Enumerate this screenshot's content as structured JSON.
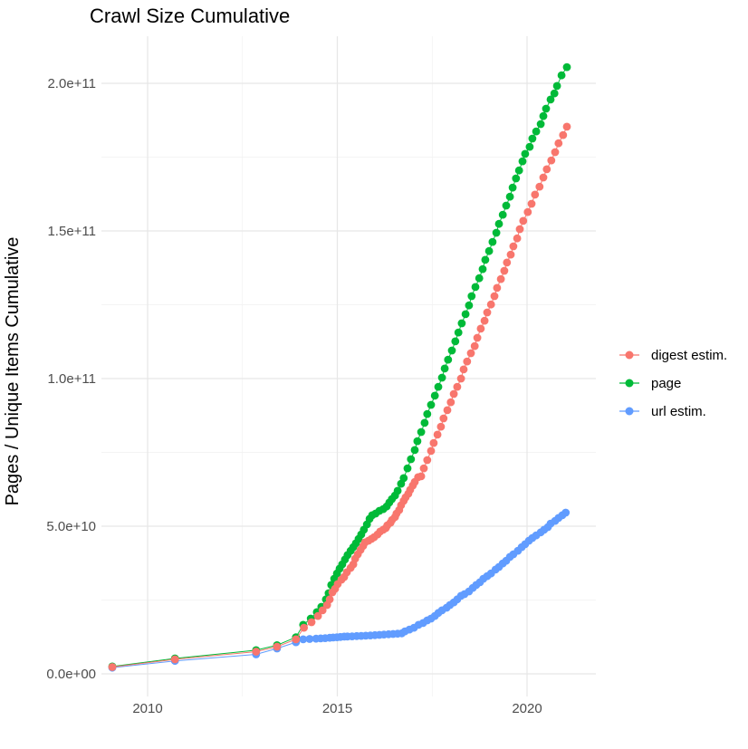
{
  "title": "Crawl Size Cumulative",
  "axes": {
    "y": {
      "title": "Pages / Unique Items Cumulative",
      "unit": "items (values stored in billions, 1e9)",
      "ticks": [
        {
          "value": 0,
          "label": "0.0e+00"
        },
        {
          "value": 50,
          "label": "5.0e+10"
        },
        {
          "value": 100,
          "label": "1.0e+11"
        },
        {
          "value": 150,
          "label": "1.5e+11"
        },
        {
          "value": 200,
          "label": "2.0e+11"
        }
      ],
      "minor_ticks": [
        25,
        75,
        125,
        175
      ]
    },
    "x": {
      "title": "",
      "unit": "year",
      "ticks": [
        {
          "value": 2010,
          "label": "2010"
        },
        {
          "value": 2015,
          "label": "2015"
        },
        {
          "value": 2020,
          "label": "2020"
        }
      ],
      "minor_ticks": [
        2012.5,
        2017.5
      ]
    }
  },
  "legend": {
    "position": "right",
    "items": [
      {
        "label": "digest estim.",
        "color": "#F8766D"
      },
      {
        "label": "page",
        "color": "#00BA38"
      },
      {
        "label": "url estim.",
        "color": "#619CFF"
      }
    ]
  },
  "colors": {
    "background": "#FFFFFF",
    "grid_major": "#E7E7E7",
    "grid_minor": "#F1F1F1",
    "axis_text": "#4D4D4D",
    "title_text": "#000000"
  },
  "chart_data": {
    "type": "scatter",
    "style": "points connected by thin lines",
    "title": "Crawl Size Cumulative",
    "xlabel": "",
    "ylabel": "Pages / Unique Items Cumulative",
    "xlim": [
      2008.8,
      2021.8
    ],
    "ylim_billions": [
      -7,
      216
    ],
    "grid": true,
    "legend_position": "right",
    "y_value_unit": "1e9",
    "series": [
      {
        "name": "digest estim.",
        "color": "#F8766D",
        "points": [
          [
            2009.07,
            2.3
          ],
          [
            2010.72,
            4.9
          ],
          [
            2012.86,
            7.5
          ],
          [
            2013.41,
            9.2
          ],
          [
            2013.91,
            11.7
          ],
          [
            2014.12,
            15.6
          ],
          [
            2014.32,
            17.5
          ],
          [
            2014.49,
            19.6
          ],
          [
            2014.61,
            21.5
          ],
          [
            2014.73,
            23.3
          ],
          [
            2014.8,
            25.2
          ],
          [
            2014.87,
            27.6
          ],
          [
            2014.94,
            28.8
          ],
          [
            2015.01,
            30.4
          ],
          [
            2015.11,
            31.9
          ],
          [
            2015.18,
            32.8
          ],
          [
            2015.25,
            34.4
          ],
          [
            2015.35,
            35.9
          ],
          [
            2015.42,
            37.1
          ],
          [
            2015.47,
            39.0
          ],
          [
            2015.54,
            40.5
          ],
          [
            2015.61,
            42.0
          ],
          [
            2015.68,
            43.3
          ],
          [
            2015.73,
            44.5
          ],
          [
            2015.82,
            45.1
          ],
          [
            2015.9,
            45.7
          ],
          [
            2015.97,
            46.3
          ],
          [
            2016.06,
            47.2
          ],
          [
            2016.13,
            48.2
          ],
          [
            2016.21,
            48.8
          ],
          [
            2016.28,
            49.4
          ],
          [
            2016.32,
            50.3
          ],
          [
            2016.4,
            51.2
          ],
          [
            2016.44,
            52.1
          ],
          [
            2016.52,
            53.1
          ],
          [
            2016.56,
            54.3
          ],
          [
            2016.63,
            55.5
          ],
          [
            2016.68,
            57.1
          ],
          [
            2016.75,
            58.6
          ],
          [
            2016.8,
            59.8
          ],
          [
            2016.87,
            61.0
          ],
          [
            2016.92,
            62.3
          ],
          [
            2016.99,
            63.8
          ],
          [
            2017.04,
            65.0
          ],
          [
            2017.13,
            66.6
          ],
          [
            2017.21,
            66.9
          ],
          [
            2017.28,
            69.6
          ],
          [
            2017.37,
            72.4
          ],
          [
            2017.47,
            75.5
          ],
          [
            2017.54,
            78.2
          ],
          [
            2017.64,
            81.0
          ],
          [
            2017.73,
            83.7
          ],
          [
            2017.8,
            86.5
          ],
          [
            2017.9,
            89.3
          ],
          [
            2017.99,
            92.0
          ],
          [
            2018.07,
            94.8
          ],
          [
            2018.16,
            97.2
          ],
          [
            2018.26,
            100.0
          ],
          [
            2018.33,
            103.1
          ],
          [
            2018.42,
            105.8
          ],
          [
            2018.52,
            108.6
          ],
          [
            2018.62,
            111.0
          ],
          [
            2018.69,
            113.8
          ],
          [
            2018.78,
            116.9
          ],
          [
            2018.88,
            119.6
          ],
          [
            2018.95,
            122.4
          ],
          [
            2019.05,
            125.1
          ],
          [
            2019.14,
            127.9
          ],
          [
            2019.21,
            130.7
          ],
          [
            2019.31,
            133.7
          ],
          [
            2019.4,
            136.5
          ],
          [
            2019.47,
            139.3
          ],
          [
            2019.57,
            142.0
          ],
          [
            2019.64,
            144.8
          ],
          [
            2019.74,
            147.5
          ],
          [
            2019.81,
            150.6
          ],
          [
            2019.9,
            153.4
          ],
          [
            2020.02,
            156.4
          ],
          [
            2020.12,
            159.2
          ],
          [
            2020.21,
            162.3
          ],
          [
            2020.33,
            165.0
          ],
          [
            2020.43,
            168.1
          ],
          [
            2020.52,
            170.9
          ],
          [
            2020.64,
            173.9
          ],
          [
            2020.74,
            176.7
          ],
          [
            2020.83,
            179.7
          ],
          [
            2020.95,
            182.5
          ],
          [
            2021.05,
            185.3
          ]
        ]
      },
      {
        "name": "page",
        "color": "#00BA38",
        "points": [
          [
            2009.07,
            2.5
          ],
          [
            2010.72,
            5.2
          ],
          [
            2012.86,
            8.0
          ],
          [
            2013.41,
            9.7
          ],
          [
            2013.91,
            12.4
          ],
          [
            2014.1,
            16.6
          ],
          [
            2014.3,
            18.7
          ],
          [
            2014.46,
            20.9
          ],
          [
            2014.58,
            22.7
          ],
          [
            2014.7,
            25.2
          ],
          [
            2014.77,
            27.3
          ],
          [
            2014.84,
            30.1
          ],
          [
            2014.92,
            32.2
          ],
          [
            2014.99,
            34.0
          ],
          [
            2015.06,
            35.6
          ],
          [
            2015.13,
            37.1
          ],
          [
            2015.2,
            38.7
          ],
          [
            2015.27,
            40.2
          ],
          [
            2015.35,
            41.7
          ],
          [
            2015.42,
            42.9
          ],
          [
            2015.49,
            44.2
          ],
          [
            2015.56,
            45.7
          ],
          [
            2015.63,
            47.2
          ],
          [
            2015.7,
            48.8
          ],
          [
            2015.78,
            50.6
          ],
          [
            2015.85,
            52.5
          ],
          [
            2015.92,
            53.7
          ],
          [
            2016.01,
            54.3
          ],
          [
            2016.11,
            55.2
          ],
          [
            2016.21,
            55.8
          ],
          [
            2016.3,
            56.7
          ],
          [
            2016.37,
            58.0
          ],
          [
            2016.44,
            59.2
          ],
          [
            2016.52,
            60.4
          ],
          [
            2016.59,
            62.0
          ],
          [
            2016.68,
            64.4
          ],
          [
            2016.75,
            66.3
          ],
          [
            2016.85,
            69.6
          ],
          [
            2016.94,
            72.7
          ],
          [
            2017.04,
            75.8
          ],
          [
            2017.11,
            78.8
          ],
          [
            2017.21,
            81.9
          ],
          [
            2017.3,
            85.0
          ],
          [
            2017.37,
            88.0
          ],
          [
            2017.47,
            91.1
          ],
          [
            2017.57,
            94.2
          ],
          [
            2017.66,
            97.2
          ],
          [
            2017.76,
            100.3
          ],
          [
            2017.83,
            103.4
          ],
          [
            2017.92,
            106.4
          ],
          [
            2018.02,
            109.5
          ],
          [
            2018.11,
            112.6
          ],
          [
            2018.19,
            115.6
          ],
          [
            2018.28,
            118.7
          ],
          [
            2018.38,
            121.8
          ],
          [
            2018.47,
            124.8
          ],
          [
            2018.54,
            127.9
          ],
          [
            2018.64,
            131.0
          ],
          [
            2018.74,
            134.0
          ],
          [
            2018.83,
            137.1
          ],
          [
            2018.9,
            140.2
          ],
          [
            2019.0,
            143.2
          ],
          [
            2019.09,
            146.3
          ],
          [
            2019.19,
            149.4
          ],
          [
            2019.26,
            152.4
          ],
          [
            2019.36,
            155.5
          ],
          [
            2019.45,
            158.6
          ],
          [
            2019.55,
            161.6
          ],
          [
            2019.62,
            164.7
          ],
          [
            2019.71,
            167.8
          ],
          [
            2019.79,
            170.5
          ],
          [
            2019.88,
            173.6
          ],
          [
            2019.95,
            176.1
          ],
          [
            2020.07,
            178.5
          ],
          [
            2020.14,
            181.3
          ],
          [
            2020.24,
            183.7
          ],
          [
            2020.36,
            186.2
          ],
          [
            2020.43,
            188.9
          ],
          [
            2020.5,
            191.4
          ],
          [
            2020.62,
            194.5
          ],
          [
            2020.72,
            196.6
          ],
          [
            2020.79,
            199.1
          ],
          [
            2020.91,
            202.7
          ],
          [
            2021.05,
            205.5
          ]
        ]
      },
      {
        "name": "url estim.",
        "color": "#619CFF",
        "points": [
          [
            2009.07,
            2.1
          ],
          [
            2010.72,
            4.4
          ],
          [
            2012.86,
            6.6
          ],
          [
            2013.41,
            8.6
          ],
          [
            2013.91,
            10.7
          ],
          [
            2014.1,
            11.7
          ],
          [
            2014.27,
            11.8
          ],
          [
            2014.44,
            11.9
          ],
          [
            2014.56,
            12.0
          ],
          [
            2014.68,
            12.1
          ],
          [
            2014.8,
            12.2
          ],
          [
            2014.89,
            12.3
          ],
          [
            2014.99,
            12.4
          ],
          [
            2015.08,
            12.5
          ],
          [
            2015.18,
            12.6
          ],
          [
            2015.27,
            12.65
          ],
          [
            2015.39,
            12.7
          ],
          [
            2015.51,
            12.8
          ],
          [
            2015.63,
            12.85
          ],
          [
            2015.75,
            12.9
          ],
          [
            2015.87,
            13.0
          ],
          [
            2015.99,
            13.1
          ],
          [
            2016.11,
            13.2
          ],
          [
            2016.23,
            13.3
          ],
          [
            2016.35,
            13.4
          ],
          [
            2016.47,
            13.5
          ],
          [
            2016.59,
            13.6
          ],
          [
            2016.7,
            13.7
          ],
          [
            2016.78,
            14.4
          ],
          [
            2016.9,
            15.0
          ],
          [
            2017.02,
            15.6
          ],
          [
            2017.14,
            16.6
          ],
          [
            2017.26,
            17.2
          ],
          [
            2017.37,
            18.1
          ],
          [
            2017.47,
            18.7
          ],
          [
            2017.57,
            19.6
          ],
          [
            2017.66,
            20.6
          ],
          [
            2017.76,
            21.5
          ],
          [
            2017.88,
            22.4
          ],
          [
            2017.97,
            23.3
          ],
          [
            2018.07,
            24.2
          ],
          [
            2018.16,
            25.2
          ],
          [
            2018.26,
            26.4
          ],
          [
            2018.35,
            27.0
          ],
          [
            2018.47,
            27.9
          ],
          [
            2018.57,
            29.1
          ],
          [
            2018.66,
            30.1
          ],
          [
            2018.76,
            31.0
          ],
          [
            2018.85,
            32.2
          ],
          [
            2018.95,
            33.1
          ],
          [
            2019.05,
            34.0
          ],
          [
            2019.17,
            35.3
          ],
          [
            2019.26,
            36.2
          ],
          [
            2019.36,
            37.4
          ],
          [
            2019.45,
            38.3
          ],
          [
            2019.55,
            39.6
          ],
          [
            2019.64,
            40.5
          ],
          [
            2019.76,
            41.7
          ],
          [
            2019.86,
            42.9
          ],
          [
            2019.95,
            43.9
          ],
          [
            2020.05,
            45.1
          ],
          [
            2020.14,
            46.0
          ],
          [
            2020.24,
            46.9
          ],
          [
            2020.36,
            47.9
          ],
          [
            2020.45,
            48.8
          ],
          [
            2020.55,
            49.7
          ],
          [
            2020.62,
            50.9
          ],
          [
            2020.74,
            51.8
          ],
          [
            2020.83,
            52.8
          ],
          [
            2020.93,
            53.7
          ],
          [
            2021.02,
            54.6
          ]
        ]
      }
    ]
  }
}
